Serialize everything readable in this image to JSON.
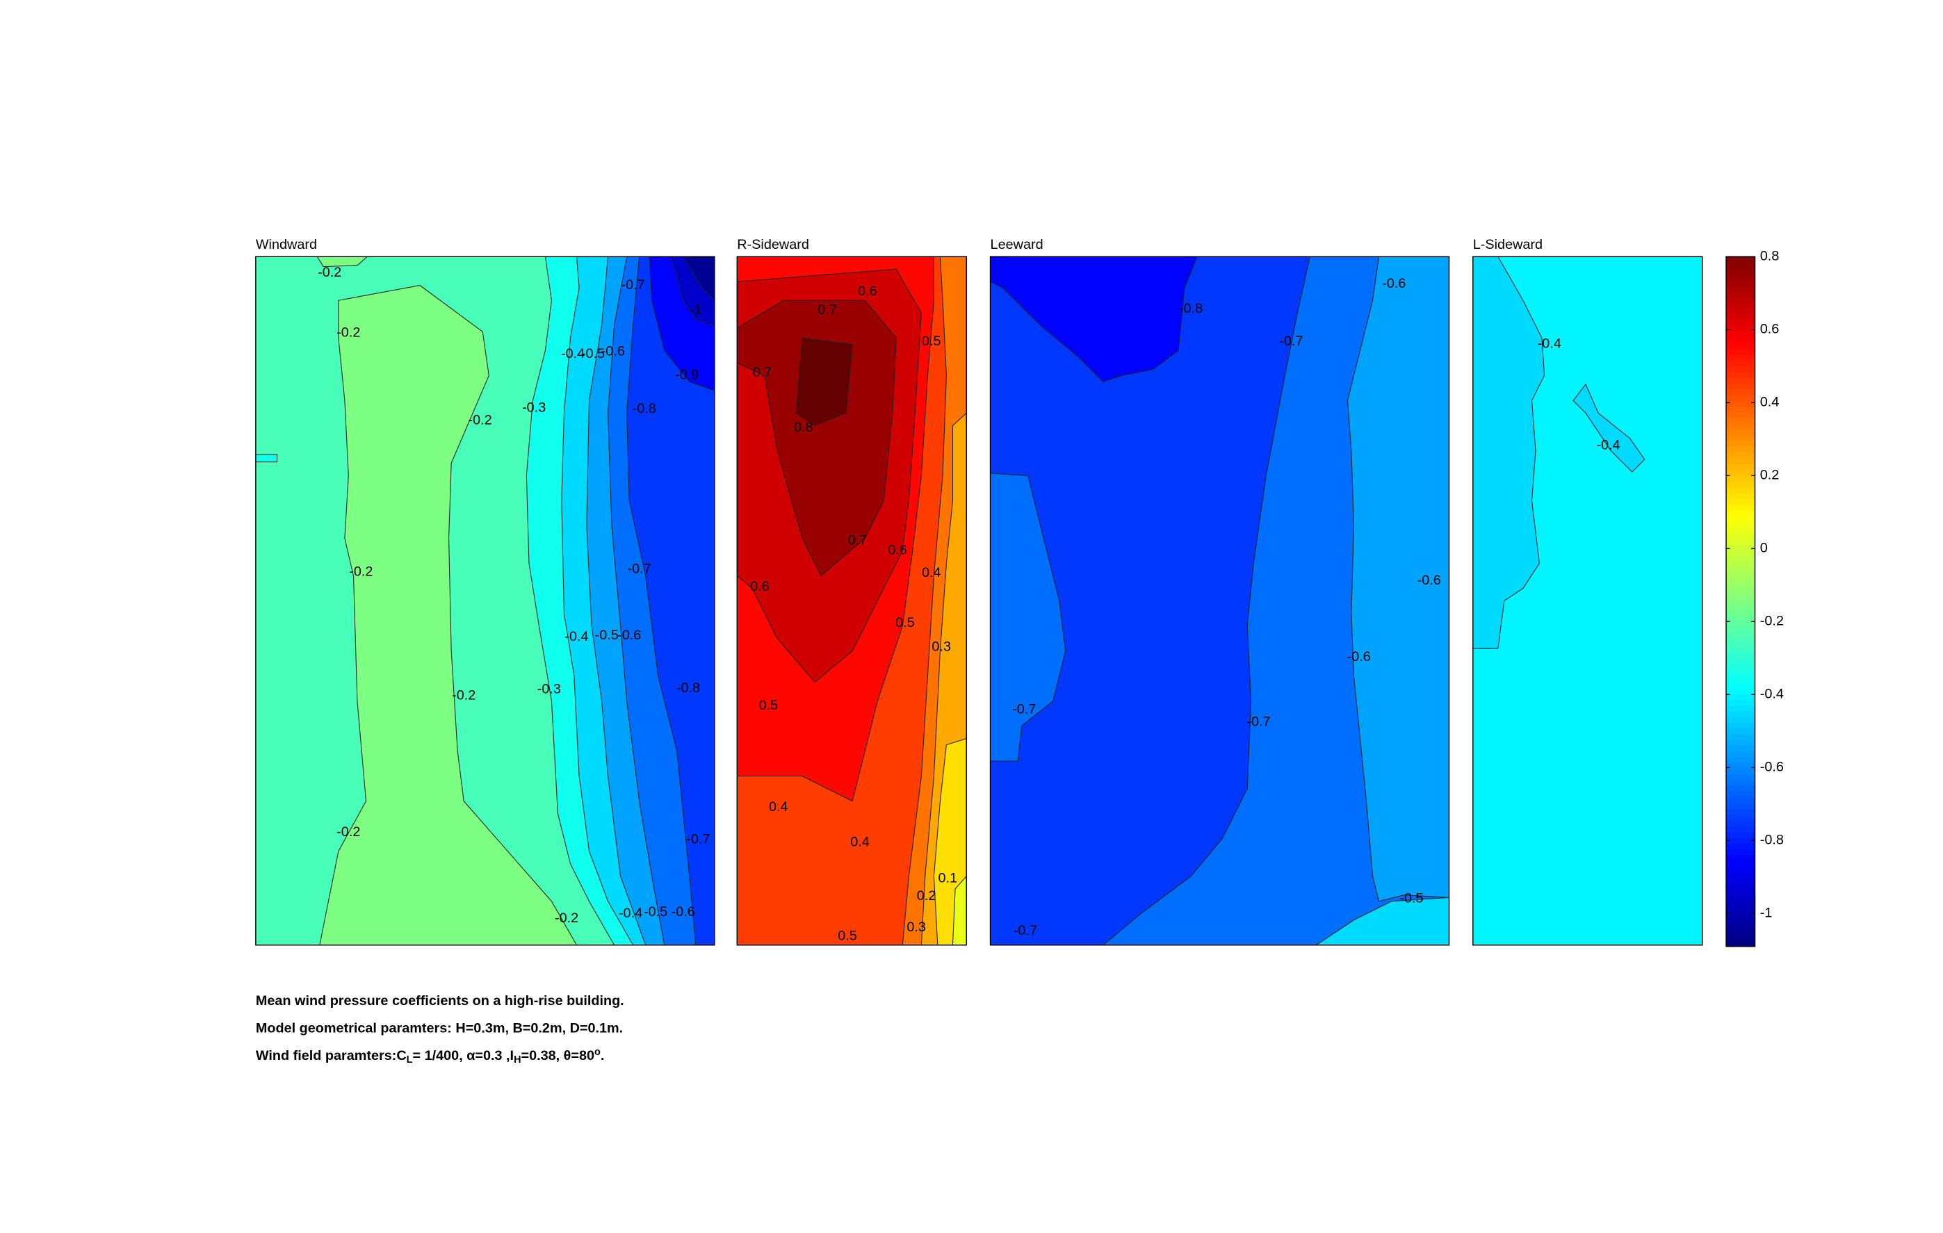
{
  "chart_data": {
    "type": "contour",
    "colormap": "jet",
    "clim": [
      -1.09,
      0.8
    ],
    "cticks": [
      0.8,
      0.6,
      0.4,
      0.2,
      0,
      -0.2,
      -0.4,
      -0.6,
      -0.8,
      -1
    ],
    "panels": [
      {
        "title": "Windward",
        "fill_levels": [
          -0.25,
          -0.15,
          -0.15,
          -0.35,
          -0.45,
          -0.55,
          -0.65,
          -0.75,
          -0.85,
          -0.95,
          -1.05,
          -0.35
        ],
        "contour_labels": [
          -0.2,
          -0.2,
          -0.2,
          -0.2,
          -0.2,
          -0.2,
          -0.2,
          -0.3,
          -0.3,
          -0.4,
          -0.5,
          -0.6,
          -0.4,
          -0.5,
          -0.6,
          -0.4,
          -0.5,
          -0.6,
          -0.7,
          -0.7,
          -0.7,
          -1,
          -0.9,
          -0.8,
          -0.8
        ]
      },
      {
        "title": "R-Sideward",
        "fill_levels": [
          0.45,
          0.35,
          0.25,
          0.15,
          0.05,
          0.55,
          0.65,
          0.75,
          0.85
        ],
        "contour_labels": [
          0.6,
          0.7,
          0.5,
          0.7,
          0.8,
          0.7,
          0.6,
          0.6,
          0.4,
          0.5,
          0.3,
          0.5,
          0.4,
          0.4,
          0.1,
          0.2,
          0.3,
          0.5
        ]
      },
      {
        "title": "Leeward",
        "fill_levels": [
          -0.65,
          -0.75,
          -0.65,
          -0.85,
          -0.55,
          -0.45
        ],
        "contour_labels": [
          -0.6,
          -0.8,
          -0.7,
          -0.6,
          -0.6,
          -0.7,
          -0.7,
          -0.5,
          -0.7
        ]
      },
      {
        "title": "L-Sideward",
        "fill_levels": [
          -0.4,
          -0.45,
          -0.45
        ],
        "contour_labels": [
          -0.4,
          -0.4
        ]
      }
    ],
    "caption": {
      "lines": [
        "Mean wind pressure coefficients on a high-rise building.",
        "Model geometrical paramters: H=0.3m, B=0.2m, D=0.1m.",
        [
          "Wind field paramters:C",
          "L",
          "= 1/400, α=0.3 ,I",
          "H",
          "=0.38, θ=80",
          "o",
          "."
        ]
      ]
    }
  }
}
